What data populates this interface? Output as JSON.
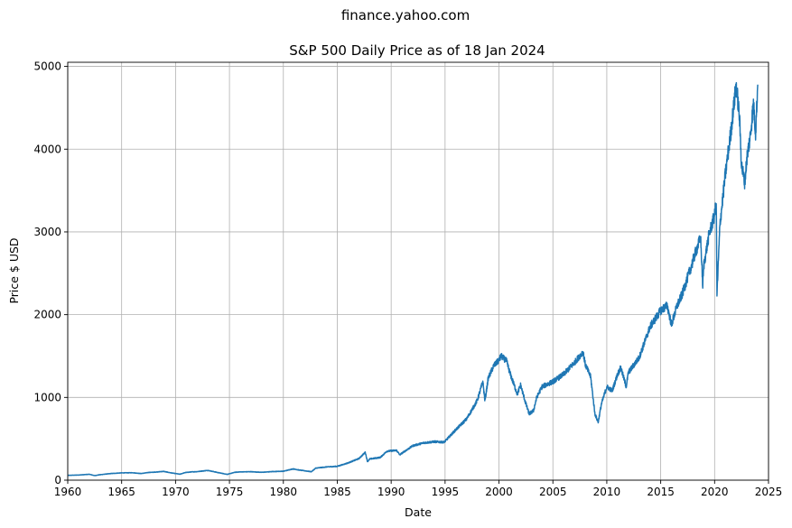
{
  "chart_data": {
    "type": "line",
    "suptitle": "finance.yahoo.com",
    "title": "S&P 500 Daily Price as of 18 Jan 2024",
    "xlabel": "Date",
    "ylabel": "Price $ USD",
    "xlim": [
      1960,
      2025
    ],
    "ylim": [
      0,
      5050
    ],
    "xticks": [
      "1960",
      "1965",
      "1970",
      "1975",
      "1980",
      "1985",
      "1990",
      "1995",
      "2000",
      "2005",
      "2010",
      "2015",
      "2020",
      "2025"
    ],
    "yticks": [
      "0",
      "1000",
      "2000",
      "3000",
      "4000",
      "5000"
    ],
    "grid": true,
    "line_color": "#1f77b4",
    "series": [
      {
        "x": [
          1960.0,
          1961.0,
          1962.0,
          1962.5,
          1963.0,
          1964.0,
          1965.0,
          1966.0,
          1966.8,
          1967.5,
          1968.0,
          1968.9,
          1969.5,
          1970.4,
          1970.9,
          1971.5,
          1972.0,
          1973.0,
          1974.0,
          1974.8,
          1975.5,
          1976.0,
          1977.0,
          1978.0,
          1979.0,
          1980.0,
          1980.9,
          1981.5,
          1982.6,
          1983.0,
          1984.0,
          1985.0,
          1986.0,
          1987.0,
          1987.6,
          1987.8,
          1988.0,
          1989.0,
          1989.6,
          1990.5,
          1990.8,
          1991.0,
          1992.0,
          1993.0,
          1994.0,
          1994.9,
          1995.0,
          1996.0,
          1997.0,
          1997.8,
          1998.0,
          1998.5,
          1998.7,
          1999.0,
          1999.5,
          2000.0,
          2000.2,
          2000.7,
          2001.0,
          2001.7,
          2002.0,
          2002.5,
          2002.8,
          2003.2,
          2003.5,
          2004.0,
          2005.0,
          2006.0,
          2007.0,
          2007.8,
          2008.0,
          2008.5,
          2008.9,
          2009.2,
          2009.5,
          2010.0,
          2010.5,
          2011.0,
          2011.3,
          2011.8,
          2012.0,
          2013.0,
          2014.0,
          2015.0,
          2015.6,
          2016.0,
          2016.5,
          2017.0,
          2018.0,
          2018.1,
          2018.7,
          2018.9,
          2019.0,
          2019.5,
          2020.0,
          2020.15,
          2020.22,
          2020.5,
          2021.0,
          2021.5,
          2022.0,
          2022.3,
          2022.5,
          2022.8,
          2023.0,
          2023.3,
          2023.6,
          2023.8,
          2024.0
        ],
        "y": [
          58,
          62,
          71,
          55,
          66,
          80,
          88,
          90,
          80,
          93,
          96,
          106,
          90,
          72,
          92,
          100,
          103,
          118,
          90,
          70,
          95,
          100,
          102,
          95,
          104,
          108,
          136,
          122,
          102,
          145,
          160,
          167,
          208,
          260,
          336,
          225,
          255,
          275,
          350,
          360,
          306,
          326,
          415,
          450,
          465,
          459,
          470,
          610,
          740,
          920,
          970,
          1190,
          960,
          1230,
          1380,
          1450,
          1500,
          1440,
          1300,
          1040,
          1150,
          920,
          800,
          840,
          1000,
          1130,
          1190,
          1280,
          1420,
          1550,
          1400,
          1250,
          800,
          700,
          920,
          1130,
          1080,
          1280,
          1360,
          1130,
          1300,
          1480,
          1850,
          2050,
          2110,
          1880,
          2100,
          2250,
          2650,
          2700,
          2930,
          2350,
          2600,
          2980,
          3200,
          3380,
          2240,
          3100,
          3700,
          4200,
          4780,
          4400,
          3800,
          3600,
          3900,
          4150,
          4550,
          4200,
          4780
        ]
      }
    ]
  }
}
